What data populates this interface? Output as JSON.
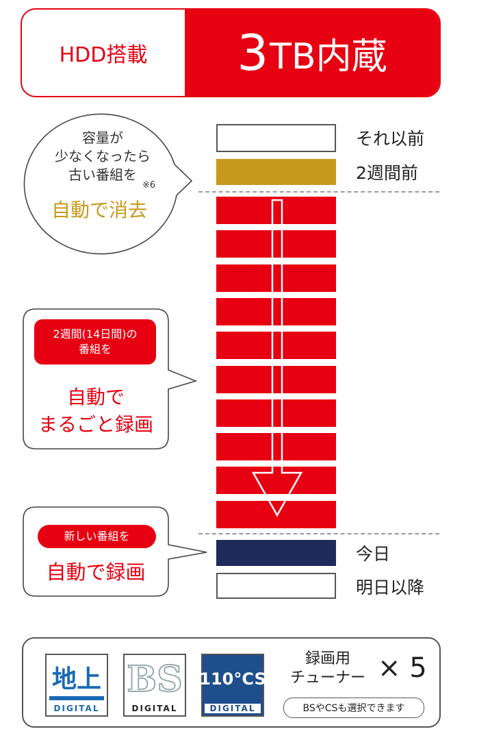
{
  "banner": {
    "left_label": "HDD搭載",
    "capacity_number": "3",
    "capacity_rest": "TB内蔵"
  },
  "timeline": {
    "labels": {
      "before": "それ以前",
      "two_weeks": "2週間前",
      "today": "今日",
      "future": "明日以降"
    },
    "recorded_days_bars": 10
  },
  "bubbles": {
    "delete": {
      "lines": [
        "容量が",
        "少なくなったら",
        "古い番組を"
      ],
      "note": "※6",
      "emphasis": "自動で消去"
    },
    "record_all": {
      "pill_lines": [
        "2週間(14日間)の",
        "番組を"
      ],
      "emphasis_lines": [
        "自動で",
        "まるごと録画"
      ]
    },
    "record_new": {
      "pill": "新しい番組を",
      "emphasis": "自動で録画"
    }
  },
  "tuner": {
    "logos": [
      {
        "glyph": "地上",
        "caption": "DIGITAL"
      },
      {
        "glyph": "BS",
        "caption": "DIGITAL"
      },
      {
        "glyph": "110°CS",
        "caption": "DIGITAL"
      }
    ],
    "label_lines": [
      "録画用",
      "チューナー"
    ],
    "multiplier": "× 5",
    "note": "BSやCSも選択できます"
  },
  "colors": {
    "red": "#e60012",
    "gold": "#c79a1e",
    "navy": "#1d2b5a",
    "blue": "#1a6ab3",
    "logo_navy": "#1e4e8c"
  }
}
